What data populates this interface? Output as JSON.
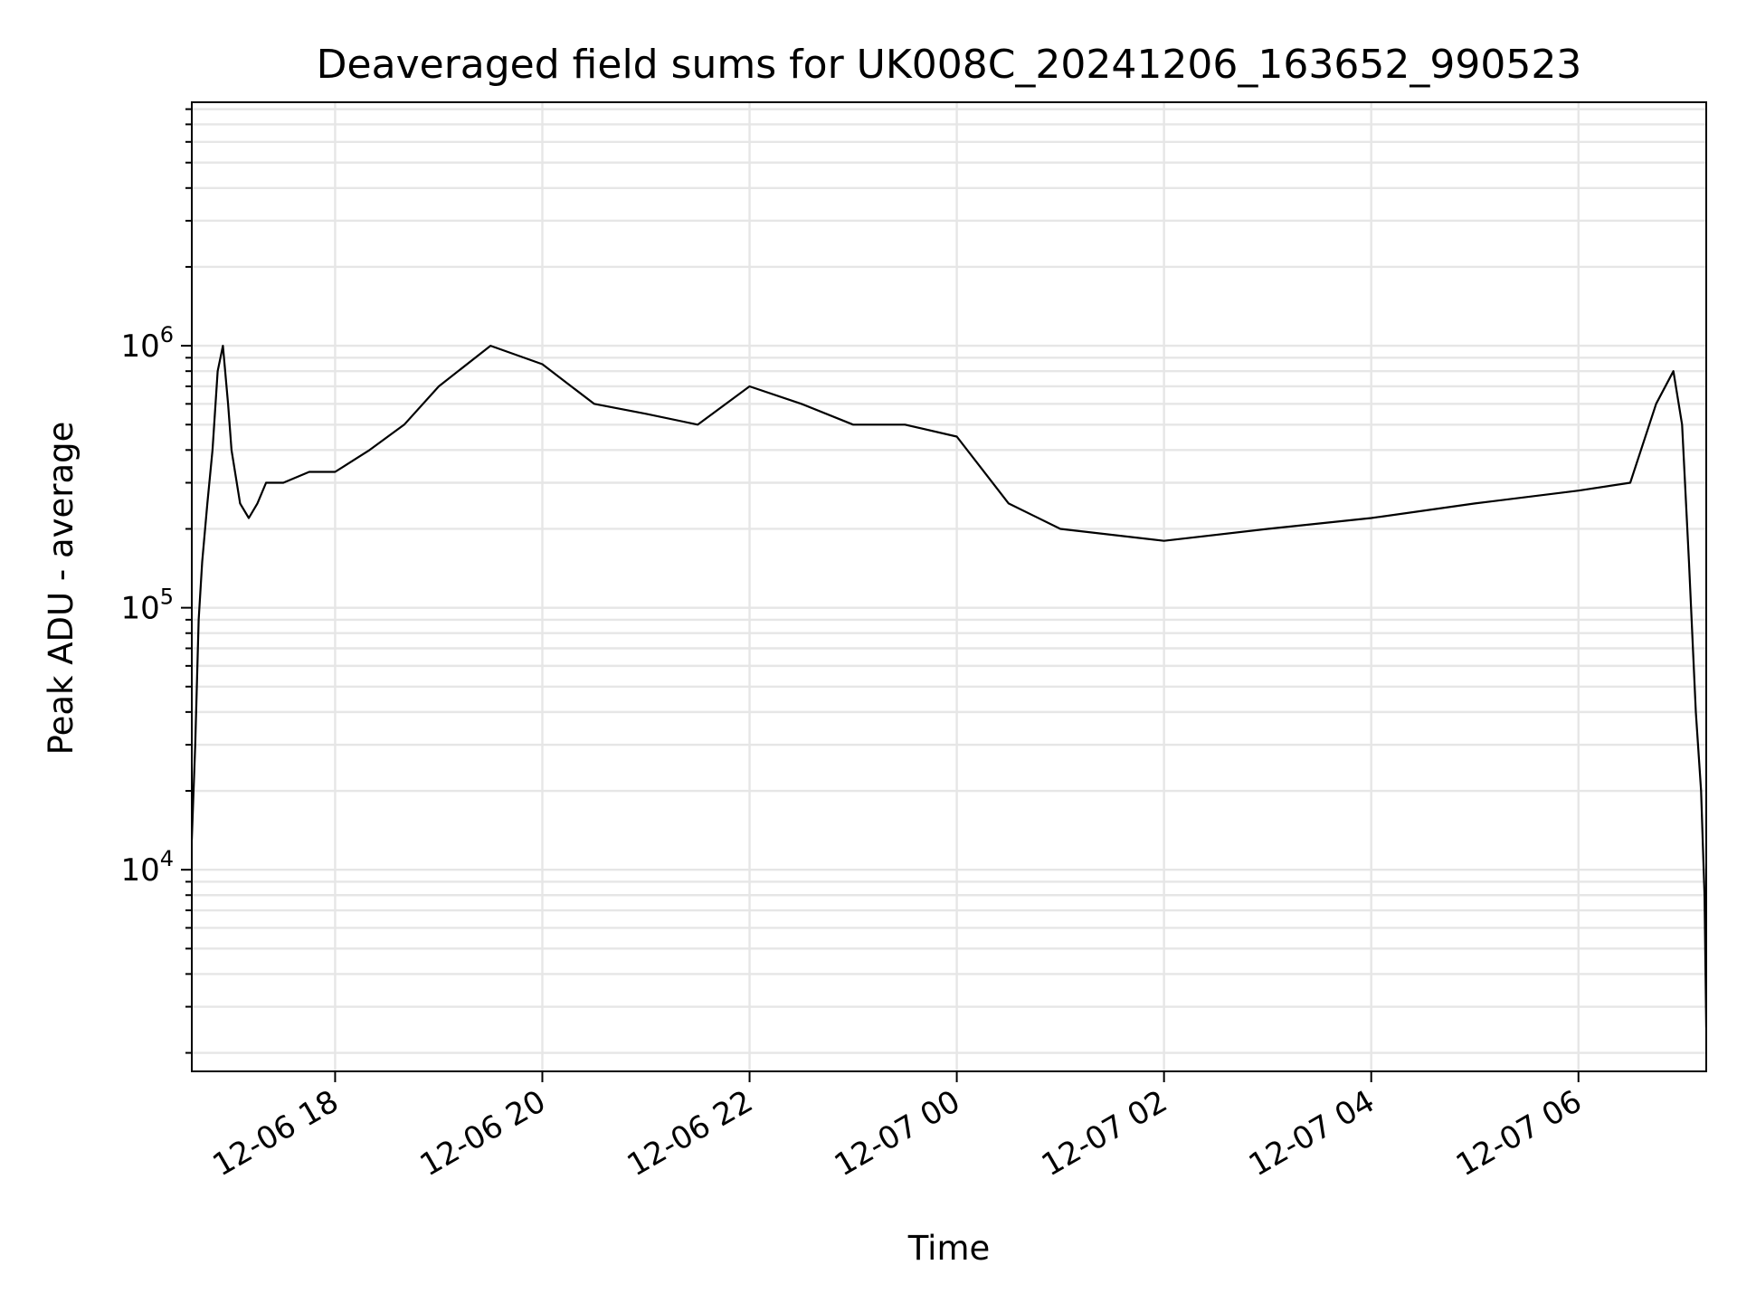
{
  "chart_data": {
    "type": "line",
    "title": "Deaveraged field sums for UK008C_20241206_163652_990523",
    "xlabel": "Time",
    "ylabel": "Peak ADU - average",
    "yscale": "log",
    "grid": true,
    "line_color": "#000000",
    "grid_color": "#e6e6e6",
    "xlim": [
      "2024-12-06 16:37",
      "2024-12-07 07:14"
    ],
    "ylim": [
      1700,
      8500000
    ],
    "x_ticks": [
      {
        "value": "2024-12-06 18:00",
        "label": "12-06 18"
      },
      {
        "value": "2024-12-06 20:00",
        "label": "12-06 20"
      },
      {
        "value": "2024-12-06 22:00",
        "label": "12-06 22"
      },
      {
        "value": "2024-12-07 00:00",
        "label": "12-07 00"
      },
      {
        "value": "2024-12-07 02:00",
        "label": "12-07 02"
      },
      {
        "value": "2024-12-07 04:00",
        "label": "12-07 04"
      },
      {
        "value": "2024-12-07 06:00",
        "label": "12-07 06"
      }
    ],
    "y_ticks": [
      {
        "value": 10000,
        "base": "10",
        "exp": "4"
      },
      {
        "value": 100000,
        "base": "10",
        "exp": "5"
      },
      {
        "value": 1000000,
        "base": "10",
        "exp": "6"
      }
    ],
    "series": [
      {
        "x": [
          "2024-12-06 16:37",
          "2024-12-06 16:39",
          "2024-12-06 16:41",
          "2024-12-06 16:43",
          "2024-12-06 16:46",
          "2024-12-06 16:49",
          "2024-12-06 16:52",
          "2024-12-06 16:55",
          "2024-12-06 16:58",
          "2024-12-06 17:00",
          "2024-12-06 17:05",
          "2024-12-06 17:10",
          "2024-12-06 17:15",
          "2024-12-06 17:20",
          "2024-12-06 17:30",
          "2024-12-06 17:45",
          "2024-12-06 18:00",
          "2024-12-06 18:20",
          "2024-12-06 18:40",
          "2024-12-06 19:00",
          "2024-12-06 19:30",
          "2024-12-06 20:00",
          "2024-12-06 20:30",
          "2024-12-06 21:00",
          "2024-12-06 21:30",
          "2024-12-06 22:00",
          "2024-12-06 22:30",
          "2024-12-06 23:00",
          "2024-12-06 23:30",
          "2024-12-07 00:00",
          "2024-12-07 00:30",
          "2024-12-07 01:00",
          "2024-12-07 02:00",
          "2024-12-07 03:00",
          "2024-12-07 04:00",
          "2024-12-07 05:00",
          "2024-12-07 06:00",
          "2024-12-07 06:30",
          "2024-12-07 06:45",
          "2024-12-07 06:55",
          "2024-12-07 07:00",
          "2024-12-07 07:04",
          "2024-12-07 07:08",
          "2024-12-07 07:11",
          "2024-12-07 07:13",
          "2024-12-07 07:14"
        ],
        "y": [
          13000,
          30000,
          90000,
          150000,
          250000,
          400000,
          800000,
          1000000,
          600000,
          400000,
          250000,
          220000,
          250000,
          300000,
          300000,
          330000,
          330000,
          400000,
          500000,
          700000,
          1000000,
          850000,
          600000,
          550000,
          500000,
          700000,
          600000,
          500000,
          500000,
          450000,
          250000,
          200000,
          180000,
          200000,
          220000,
          250000,
          280000,
          300000,
          600000,
          800000,
          500000,
          150000,
          40000,
          20000,
          8000,
          2500
        ]
      }
    ]
  }
}
